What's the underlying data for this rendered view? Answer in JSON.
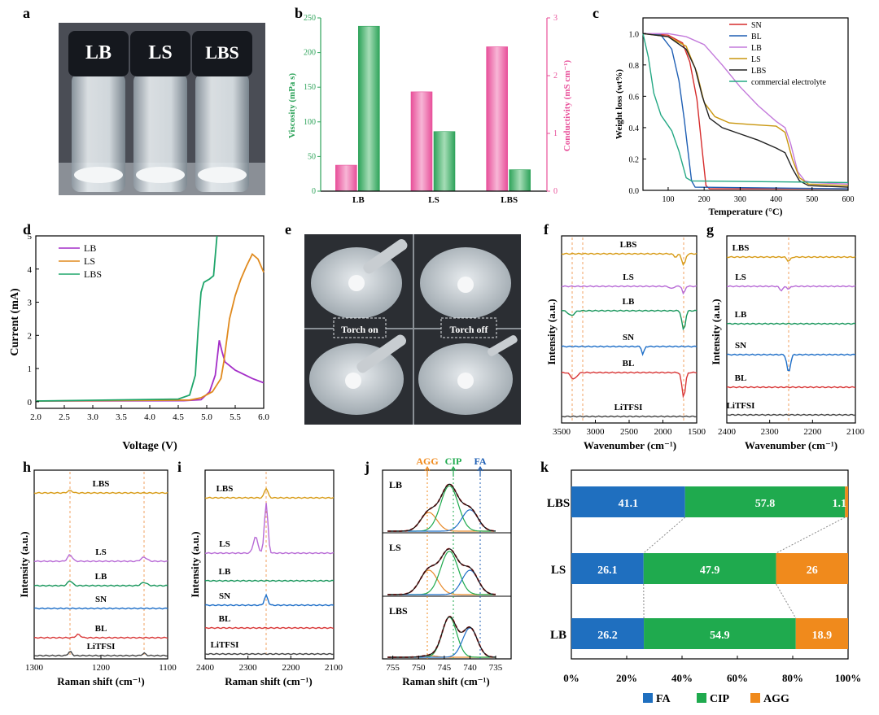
{
  "chart_data": [
    {
      "panel": "a",
      "type": "photo",
      "vials": [
        "LB",
        "LS",
        "LBS"
      ]
    },
    {
      "panel": "b",
      "type": "bar",
      "categories": [
        "LB",
        "LS",
        "LBS"
      ],
      "series": [
        {
          "name": "Conductivity",
          "axis": "right",
          "color": "#e8509a",
          "values": [
            0.45,
            1.72,
            2.5
          ]
        },
        {
          "name": "Viscosity",
          "axis": "left",
          "color": "#2ea35a",
          "values": [
            238,
            86,
            31
          ]
        }
      ],
      "ylabel": "Viscosity (mPa s)",
      "ylabel2": "Conductivity (mS cm⁻¹)",
      "ylim": [
        0,
        250
      ],
      "ylim2": [
        0,
        3
      ],
      "yticks": [
        "0",
        "50",
        "100",
        "150",
        "200",
        "250"
      ],
      "yticks2": [
        "0",
        "1",
        "2",
        "3"
      ]
    },
    {
      "panel": "c",
      "type": "line",
      "xlabel": "Temperature (°C)",
      "ylabel": "Weight loss (wt%)",
      "xlim": [
        30,
        600
      ],
      "ylim": [
        0,
        1.1
      ],
      "xticks": [
        "100",
        "200",
        "300",
        "400",
        "500",
        "600"
      ],
      "yticks": [
        "0.0",
        "0.2",
        "0.4",
        "0.6",
        "0.8",
        "1.0"
      ],
      "series": [
        {
          "name": "SN",
          "color": "#d62c2c",
          "points": [
            [
              30,
              1
            ],
            [
              100,
              0.99
            ],
            [
              140,
              0.94
            ],
            [
              160,
              0.82
            ],
            [
              180,
              0.58
            ],
            [
              195,
              0.25
            ],
            [
              205,
              0.03
            ],
            [
              215,
              0.01
            ],
            [
              600,
              0.01
            ]
          ]
        },
        {
          "name": "BL",
          "color": "#1f5fb4",
          "points": [
            [
              30,
              1
            ],
            [
              80,
              0.99
            ],
            [
              110,
              0.9
            ],
            [
              130,
              0.7
            ],
            [
              145,
              0.45
            ],
            [
              155,
              0.25
            ],
            [
              165,
              0.06
            ],
            [
              175,
              0.02
            ],
            [
              600,
              0.01
            ]
          ]
        },
        {
          "name": "LB",
          "color": "#c37adb",
          "points": [
            [
              30,
              1
            ],
            [
              100,
              1
            ],
            [
              150,
              0.98
            ],
            [
              200,
              0.93
            ],
            [
              250,
              0.8
            ],
            [
              300,
              0.66
            ],
            [
              350,
              0.54
            ],
            [
              400,
              0.44
            ],
            [
              425,
              0.4
            ],
            [
              440,
              0.3
            ],
            [
              460,
              0.12
            ],
            [
              480,
              0.06
            ],
            [
              500,
              0.05
            ],
            [
              600,
              0.04
            ]
          ]
        },
        {
          "name": "LS",
          "color": "#c9960e",
          "points": [
            [
              30,
              1
            ],
            [
              100,
              0.98
            ],
            [
              150,
              0.92
            ],
            [
              180,
              0.75
            ],
            [
              200,
              0.56
            ],
            [
              230,
              0.47
            ],
            [
              270,
              0.43
            ],
            [
              330,
              0.42
            ],
            [
              400,
              0.41
            ],
            [
              425,
              0.37
            ],
            [
              445,
              0.2
            ],
            [
              465,
              0.08
            ],
            [
              490,
              0.04
            ],
            [
              600,
              0.03
            ]
          ]
        },
        {
          "name": "LBS",
          "color": "#222222",
          "points": [
            [
              30,
              1
            ],
            [
              100,
              0.98
            ],
            [
              150,
              0.9
            ],
            [
              175,
              0.78
            ],
            [
              195,
              0.6
            ],
            [
              215,
              0.46
            ],
            [
              250,
              0.4
            ],
            [
              300,
              0.36
            ],
            [
              350,
              0.32
            ],
            [
              400,
              0.27
            ],
            [
              425,
              0.24
            ],
            [
              445,
              0.14
            ],
            [
              465,
              0.06
            ],
            [
              490,
              0.03
            ],
            [
              600,
              0.02
            ]
          ]
        },
        {
          "name": "commercial electrolyte",
          "color": "#24a884",
          "points": [
            [
              30,
              1
            ],
            [
              45,
              0.85
            ],
            [
              60,
              0.62
            ],
            [
              80,
              0.48
            ],
            [
              110,
              0.38
            ],
            [
              130,
              0.25
            ],
            [
              150,
              0.08
            ],
            [
              165,
              0.06
            ],
            [
              600,
              0.05
            ]
          ]
        }
      ]
    },
    {
      "panel": "d",
      "type": "line",
      "xlabel": "Voltage (V)",
      "ylabel": "Current (mA)",
      "xlim": [
        2.0,
        6.0
      ],
      "ylim": [
        -0.2,
        5
      ],
      "xticks": [
        "2.0",
        "2.5",
        "3.0",
        "3.5",
        "4.0",
        "4.5",
        "5.0",
        "5.5",
        "6.0"
      ],
      "yticks": [
        "0",
        "1",
        "2",
        "3",
        "4",
        "5"
      ],
      "series": [
        {
          "name": "LB",
          "color": "#a42ec8",
          "points": [
            [
              2,
              0.02
            ],
            [
              4.6,
              0.03
            ],
            [
              4.9,
              0.06
            ],
            [
              5.05,
              0.3
            ],
            [
              5.15,
              0.8
            ],
            [
              5.22,
              1.85
            ],
            [
              5.27,
              1.5
            ],
            [
              5.32,
              1.2
            ],
            [
              5.5,
              0.95
            ],
            [
              5.8,
              0.7
            ],
            [
              6,
              0.57
            ]
          ]
        },
        {
          "name": "LS",
          "color": "#e08a1e",
          "points": [
            [
              2,
              0.02
            ],
            [
              4.7,
              0.05
            ],
            [
              4.9,
              0.12
            ],
            [
              5.1,
              0.3
            ],
            [
              5.25,
              0.7
            ],
            [
              5.3,
              1.2
            ],
            [
              5.4,
              2.5
            ],
            [
              5.5,
              3.2
            ],
            [
              5.6,
              3.7
            ],
            [
              5.7,
              4.1
            ],
            [
              5.8,
              4.45
            ],
            [
              5.9,
              4.3
            ],
            [
              6,
              3.9
            ]
          ]
        },
        {
          "name": "LBS",
          "color": "#1ea56a",
          "points": [
            [
              2,
              0.02
            ],
            [
              4.5,
              0.08
            ],
            [
              4.7,
              0.2
            ],
            [
              4.8,
              0.8
            ],
            [
              4.85,
              2.2
            ],
            [
              4.9,
              3.3
            ],
            [
              4.95,
              3.6
            ],
            [
              5.05,
              3.7
            ],
            [
              5.12,
              3.8
            ],
            [
              5.15,
              4.4
            ],
            [
              5.18,
              5
            ]
          ]
        }
      ]
    },
    {
      "panel": "e",
      "type": "photo",
      "labels": [
        "Torch on",
        "Torch off"
      ]
    },
    {
      "panel": "f",
      "type": "line",
      "xlabel": "Wavenumber (cm⁻¹)",
      "ylabel": "Intensity (a.u.)",
      "xlim": [
        3500,
        1500
      ],
      "xticks": [
        "3500",
        "3000",
        "2500",
        "2000",
        "1500"
      ],
      "traces": [
        "LBS",
        "LS",
        "LB",
        "SN",
        "BL",
        "LiTFSI"
      ]
    },
    {
      "panel": "g",
      "type": "line",
      "xlabel": "Wavenumber (cm⁻¹)",
      "ylabel": "Intensity (a.u.)",
      "xlim": [
        2400,
        2100
      ],
      "xticks": [
        "2400",
        "2300",
        "2200",
        "2100"
      ],
      "traces": [
        "LBS",
        "LS",
        "LB",
        "SN",
        "BL",
        "LiTFSI"
      ]
    },
    {
      "panel": "h",
      "type": "line",
      "xlabel": "Raman shift (cm⁻¹)",
      "ylabel": "Intensity (a.u.)",
      "xlim": [
        1300,
        1100
      ],
      "xticks": [
        "1300",
        "1200",
        "1100"
      ],
      "traces": [
        "LBS",
        "LS",
        "LB",
        "SN",
        "BL",
        "LiTFSI"
      ]
    },
    {
      "panel": "i",
      "type": "line",
      "xlabel": "Raman shift (cm⁻¹)",
      "ylabel": "Intensity (a.u.)",
      "xlim": [
        2400,
        2100
      ],
      "xticks": [
        "2400",
        "2300",
        "2200",
        "2100"
      ],
      "traces": [
        "LBS",
        "LS",
        "LB",
        "SN",
        "BL",
        "LiTFSI"
      ]
    },
    {
      "panel": "j",
      "type": "line",
      "xlabel": "Raman shift (cm⁻¹)",
      "xlim": [
        757,
        732
      ],
      "xticks": [
        "755",
        "750",
        "745",
        "740",
        "735"
      ],
      "peaks": [
        "AGG",
        "CIP",
        "FA"
      ],
      "subplots": [
        "LB",
        "LS",
        "LBS"
      ]
    },
    {
      "panel": "k",
      "type": "bar",
      "orientation": "horizontal-stacked",
      "categories": [
        "LBS",
        "LS",
        "LB"
      ],
      "series": [
        {
          "name": "FA",
          "color": "#1f6fbf",
          "values": [
            41.1,
            26.1,
            26.2
          ],
          "labels": [
            "41.1",
            "26.1",
            "26.2"
          ]
        },
        {
          "name": "CIP",
          "color": "#1faa4e",
          "values": [
            57.8,
            47.9,
            54.9
          ],
          "labels": [
            "57.8",
            "47.9",
            "54.9"
          ]
        },
        {
          "name": "AGG",
          "color": "#f08a1c",
          "values": [
            1.1,
            26,
            18.9
          ],
          "labels": [
            "1.1",
            "26",
            "18.9"
          ]
        }
      ],
      "xticks": [
        "0%",
        "20%",
        "40%",
        "60%",
        "80%",
        "100%"
      ],
      "xlim": [
        0,
        100
      ]
    }
  ]
}
